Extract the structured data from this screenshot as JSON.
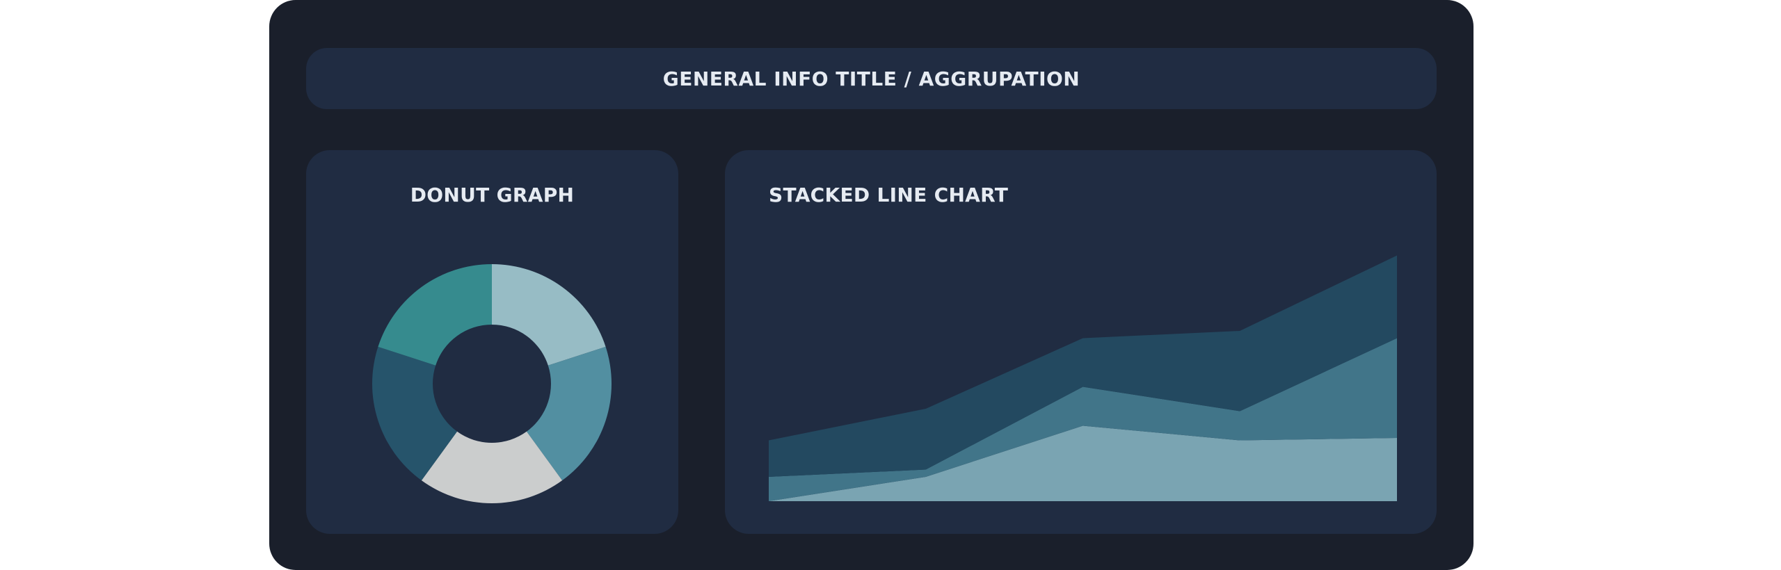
{
  "header": {
    "title": "GENERAL INFO TITLE / AGGRUPATION"
  },
  "chart_data": [
    {
      "type": "pie",
      "title": "DONUT GRAPH",
      "hole": true,
      "slices": [
        {
          "value": 20,
          "color": "#97bcc5"
        },
        {
          "value": 20,
          "color": "#528fa1"
        },
        {
          "value": 20,
          "color": "#cbcdcd"
        },
        {
          "value": 20,
          "color": "#26546b"
        },
        {
          "value": 20,
          "color": "#368b8e"
        }
      ]
    },
    {
      "type": "area",
      "title": "STACKED LINE CHART",
      "stacked": true,
      "x": [
        1,
        2,
        3,
        4,
        5
      ],
      "ylim": [
        0,
        100
      ],
      "series": [
        {
          "values": [
            0,
            10,
            31,
            25,
            26
          ],
          "color": "#7aa4b2"
        },
        {
          "values": [
            10,
            3,
            16,
            12,
            41
          ],
          "color": "#417589"
        },
        {
          "values": [
            15,
            25,
            20,
            33,
            34
          ],
          "color": "#234960"
        }
      ]
    }
  ]
}
